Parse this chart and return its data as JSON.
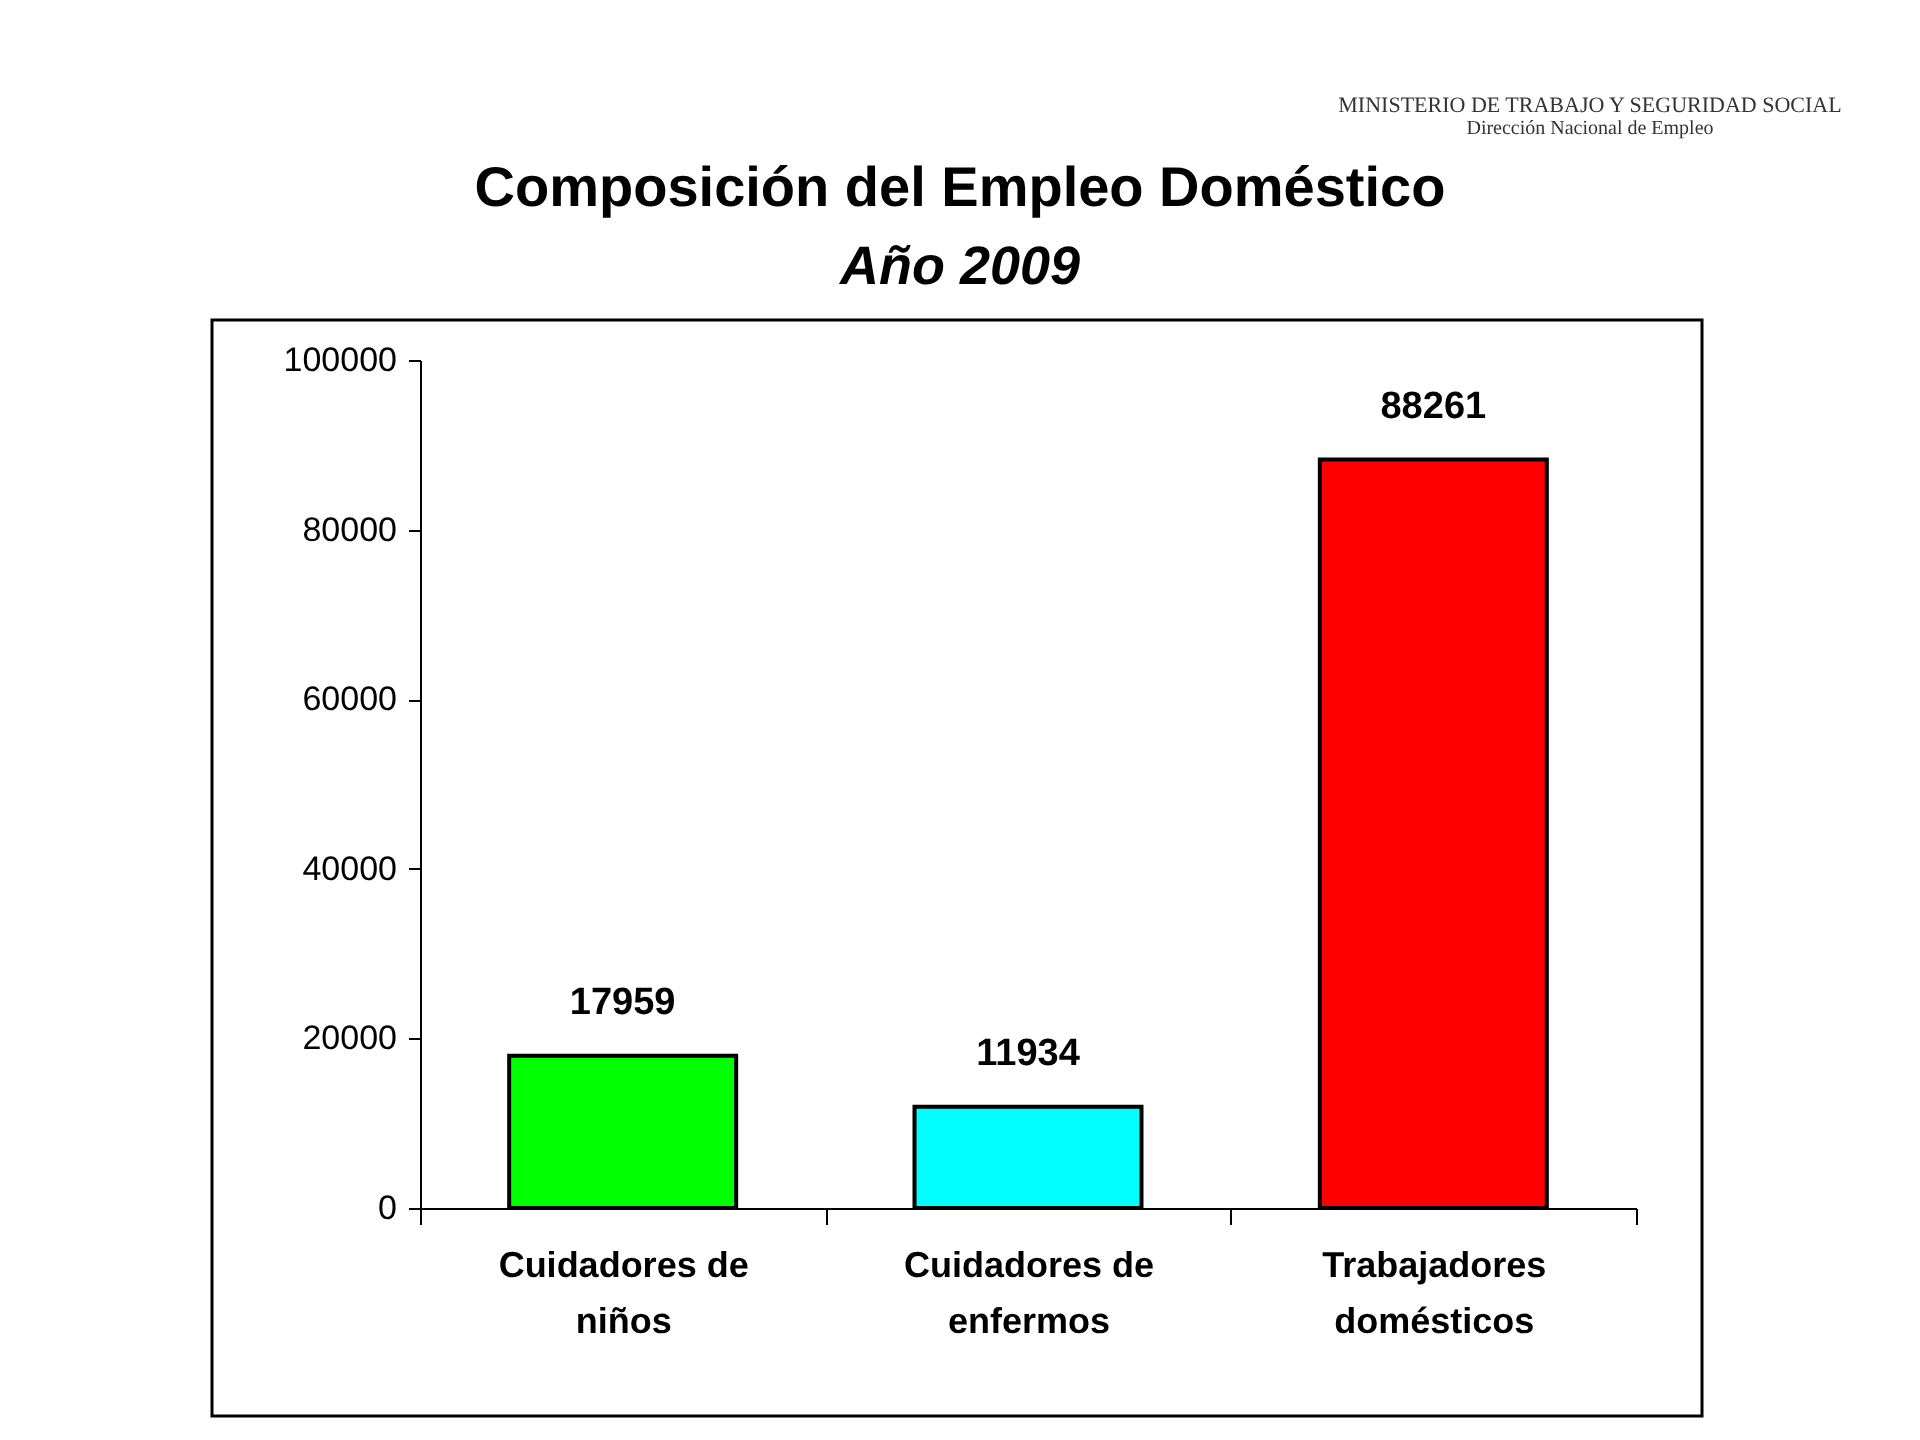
{
  "chart_data": {
    "type": "bar",
    "title": "Composición del Empleo Doméstico",
    "subtitle": "Año 2009",
    "categories": [
      "Cuidadores de niños",
      "Cuidadores de enfermos",
      "Trabajadores domésticos"
    ],
    "values": [
      17959,
      11934,
      88261
    ],
    "colors": [
      "#00ff00",
      "#00ffff",
      "#ff0000"
    ],
    "ylim": [
      0,
      100000
    ],
    "yticks": [
      0,
      20000,
      40000,
      60000,
      80000,
      100000
    ],
    "data_labels": true,
    "annotations": [
      "MINISTERIO DE TRABAJO Y SEGURIDAD SOCIAL",
      "Dirección Nacional de Empleo"
    ]
  }
}
